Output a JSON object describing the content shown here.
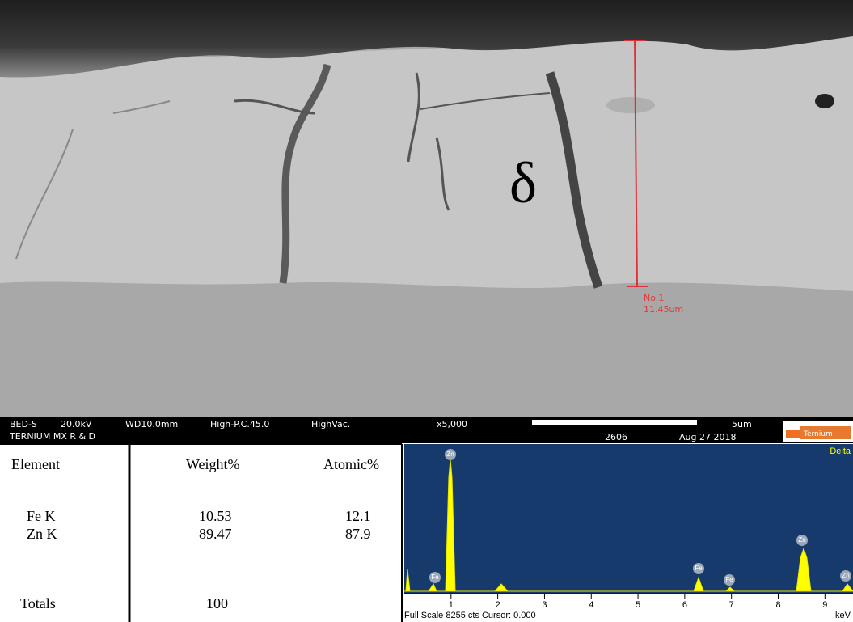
{
  "sem": {
    "phase": "δ",
    "measure_id": "No.1",
    "measure_length": "11.45um",
    "info": {
      "detector": "BED-S",
      "voltage": "20.0kV",
      "wd": "WD10.0mm",
      "mode": "High-P.C.45.0",
      "vacuum": "HighVac.",
      "magnification": "x5,000",
      "scale": "5um",
      "lab": "TERNIUM MX R & D",
      "id": "2606",
      "date": "Aug 27 2018",
      "logo": "Ternium"
    }
  },
  "table": {
    "header": [
      "Element",
      "Weight%",
      "Atomic%"
    ],
    "rows": [
      [
        "Fe K",
        "10.53",
        "12.1"
      ],
      [
        "Zn K",
        "89.47",
        "87.9"
      ],
      [
        "Totals",
        "100",
        null
      ]
    ]
  },
  "spectrum": {
    "title": "Delta",
    "peaks": [
      "Zn",
      "Fe",
      "Fe",
      "Fe",
      "Zn",
      "Zn"
    ],
    "xticks": [
      1,
      2,
      3,
      4,
      5,
      6,
      7,
      8,
      9
    ],
    "xlim": [
      0,
      9.6
    ],
    "unit": "keV",
    "footer": "Full Scale 8255 cts Cursor: 0.000"
  }
}
